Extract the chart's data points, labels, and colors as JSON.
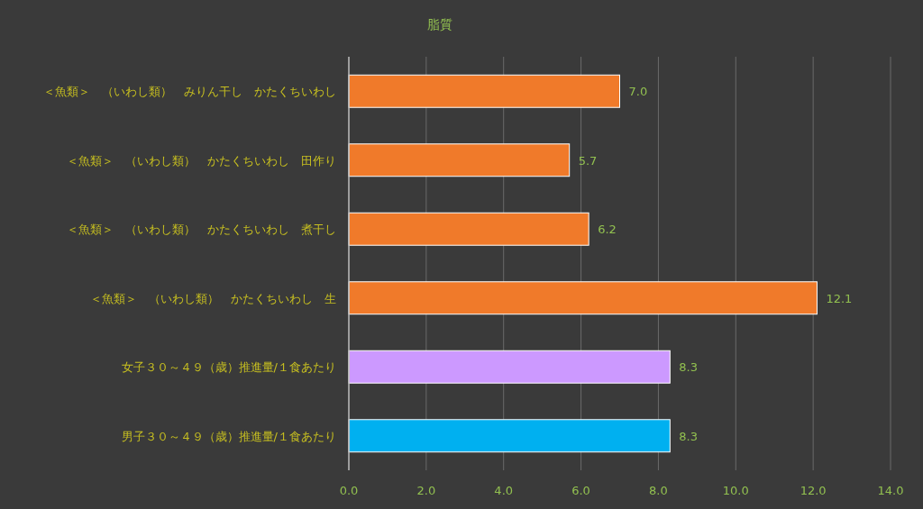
{
  "chart_data": {
    "type": "bar",
    "orientation": "horizontal",
    "title": "脂質",
    "categories": [
      "＜魚類＞　（いわし類）　みりん干し　かたくちいわし",
      "＜魚類＞　（いわし類）　かたくちいわし　田作り",
      "＜魚類＞　（いわし類）　かたくちいわし　煮干し",
      "＜魚類＞　（いわし類）　かたくちいわし　生",
      "女子３０～４９（歳）推進量/１食あたり",
      "男子３０～４９（歳）推進量/１食あたり"
    ],
    "values": [
      7.0,
      5.7,
      6.2,
      12.1,
      8.3,
      8.3
    ],
    "colors": [
      "#f07a2a",
      "#f07a2a",
      "#f07a2a",
      "#f07a2a",
      "#cc99ff",
      "#00b0f0"
    ],
    "value_labels": [
      "7.0",
      "5.7",
      "6.2",
      "12.1",
      "8.3",
      "8.3"
    ],
    "grid": "x",
    "xlim": [
      0,
      14
    ],
    "xticks": [
      {
        "value": 0,
        "label": "0.0"
      },
      {
        "value": 2,
        "label": "2.0"
      },
      {
        "value": 4,
        "label": "4.0"
      },
      {
        "value": 6,
        "label": "6.0"
      },
      {
        "value": 8,
        "label": "8.0"
      },
      {
        "value": 10,
        "label": "10.0"
      },
      {
        "value": 12,
        "label": "12.0"
      },
      {
        "value": 14,
        "label": "14.0"
      }
    ]
  }
}
